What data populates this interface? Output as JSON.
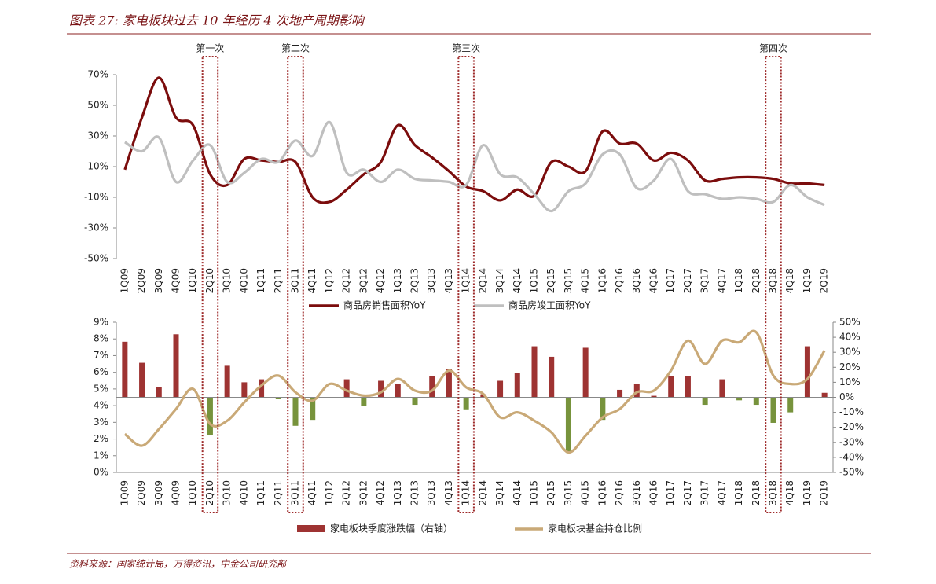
{
  "title": "图表 27:  家电板块过去 10 年经历 4 次地产周期影响",
  "source": "资料来源：国家统计局，万得资讯，中金公司研究部",
  "chart_data": [
    {
      "type": "line",
      "categories": [
        "1Q09",
        "2Q09",
        "3Q09",
        "4Q09",
        "1Q10",
        "2Q10",
        "3Q10",
        "4Q10",
        "1Q11",
        "2Q11",
        "3Q11",
        "4Q11",
        "1Q12",
        "2Q12",
        "3Q12",
        "4Q12",
        "1Q13",
        "2Q13",
        "3Q13",
        "4Q13",
        "1Q14",
        "2Q14",
        "3Q14",
        "4Q14",
        "1Q15",
        "2Q15",
        "3Q15",
        "4Q15",
        "1Q16",
        "2Q16",
        "3Q16",
        "4Q16",
        "1Q17",
        "2Q17",
        "3Q17",
        "4Q17",
        "1Q18",
        "2Q18",
        "3Q18",
        "4Q18",
        "1Q19",
        "2Q19"
      ],
      "ylim": [
        -50,
        70
      ],
      "yticks": [
        {
          "value": -50,
          "label": "-50%"
        },
        {
          "value": -30,
          "label": "-30%"
        },
        {
          "value": -10,
          "label": "-10%"
        },
        {
          "value": 10,
          "label": "10%"
        },
        {
          "value": 30,
          "label": "30%"
        },
        {
          "value": 50,
          "label": "50%"
        },
        {
          "value": 70,
          "label": "70%"
        }
      ],
      "series": [
        {
          "name": "商品房销售面积YoY",
          "color": "#7b0c0c",
          "values": [
            8,
            42,
            68,
            42,
            37,
            5,
            -2,
            15,
            14,
            13,
            13,
            -10,
            -13,
            -5,
            5,
            13,
            37,
            24,
            16,
            7,
            -3,
            -6,
            -12,
            -5,
            -9,
            13,
            10,
            7,
            33,
            25,
            25,
            14,
            19,
            14,
            1,
            2,
            3,
            3,
            2,
            -1,
            -1,
            -2
          ]
        },
        {
          "name": "商品房竣工面积YoY",
          "color": "#bfbfbf",
          "values": [
            26,
            20,
            29,
            0,
            14,
            24,
            0,
            6,
            15,
            13,
            27,
            17,
            39,
            6,
            8,
            0,
            8,
            2,
            1,
            0,
            -2,
            24,
            5,
            3,
            -8,
            -19,
            -6,
            -1,
            18,
            18,
            -4,
            1,
            15,
            -6,
            -8,
            -11,
            -10,
            -11,
            -13,
            -2,
            -10,
            -15
          ]
        }
      ],
      "annotations": [
        {
          "text": "第一次",
          "category": "2Q10"
        },
        {
          "text": "第二次",
          "category": "3Q11"
        },
        {
          "text": "第三次",
          "category": "1Q14"
        },
        {
          "text": "第四次",
          "category": "3Q18"
        }
      ]
    },
    {
      "type": "bar_line",
      "categories": [
        "1Q09",
        "2Q09",
        "3Q09",
        "4Q09",
        "1Q10",
        "2Q10",
        "3Q10",
        "4Q10",
        "1Q11",
        "2Q11",
        "3Q11",
        "4Q11",
        "1Q12",
        "2Q12",
        "3Q12",
        "4Q12",
        "1Q13",
        "2Q13",
        "3Q13",
        "4Q13",
        "1Q14",
        "2Q14",
        "3Q14",
        "4Q14",
        "1Q15",
        "2Q15",
        "3Q15",
        "4Q15",
        "1Q16",
        "2Q16",
        "3Q16",
        "4Q16",
        "1Q17",
        "2Q17",
        "3Q17",
        "4Q17",
        "1Q18",
        "2Q18",
        "3Q18",
        "4Q18",
        "1Q19",
        "2Q19"
      ],
      "ylim": [
        0,
        9
      ],
      "yticks": [
        {
          "value": 0,
          "label": "0%"
        },
        {
          "value": 1,
          "label": "1%"
        },
        {
          "value": 2,
          "label": "2%"
        },
        {
          "value": 3,
          "label": "3%"
        },
        {
          "value": 4,
          "label": "4%"
        },
        {
          "value": 5,
          "label": "5%"
        },
        {
          "value": 6,
          "label": "6%"
        },
        {
          "value": 7,
          "label": "7%"
        },
        {
          "value": 8,
          "label": "8%"
        },
        {
          "value": 9,
          "label": "9%"
        }
      ],
      "y2lim": [
        -50,
        50
      ],
      "y2ticks": [
        {
          "value": -50,
          "label": "-50%"
        },
        {
          "value": -40,
          "label": "-40%"
        },
        {
          "value": -30,
          "label": "-30%"
        },
        {
          "value": -20,
          "label": "-20%"
        },
        {
          "value": -10,
          "label": "-10%"
        },
        {
          "value": 0,
          "label": "0%"
        },
        {
          "value": 10,
          "label": "10%"
        },
        {
          "value": 20,
          "label": "20%"
        },
        {
          "value": 30,
          "label": "30%"
        },
        {
          "value": 40,
          "label": "40%"
        },
        {
          "value": 50,
          "label": "50%"
        }
      ],
      "series": [
        {
          "name": "家电板块季度涨跌幅（右轴）",
          "type": "bar",
          "axis": "y2",
          "color": "#9e3332",
          "negative_color": "#77933c",
          "values": [
            37,
            23,
            7,
            42,
            0,
            -25,
            21,
            10,
            12,
            -1,
            -19,
            -15,
            0,
            12,
            -6,
            11,
            9,
            -5,
            14,
            19,
            -8,
            2,
            11,
            16,
            34,
            27,
            -37,
            33,
            -15,
            5,
            9,
            1,
            14,
            14,
            -5,
            12,
            -2,
            -5,
            -17,
            -10,
            34,
            3
          ]
        },
        {
          "name": "家电板块基金持仓比例",
          "type": "line",
          "color": "#c9a977",
          "values": [
            2.3,
            1.6,
            2.6,
            3.8,
            5.0,
            2.9,
            3.1,
            4.2,
            5.2,
            5.8,
            4.8,
            4.3,
            5.3,
            4.9,
            4.6,
            4.8,
            5.6,
            4.9,
            4.9,
            6.1,
            5.1,
            4.7,
            3.3,
            3.6,
            3.1,
            2.4,
            1.2,
            2.2,
            3.3,
            3.8,
            4.8,
            4.9,
            6.1,
            7.9,
            6.5,
            7.9,
            7.8,
            8.4,
            5.8,
            5.3,
            5.6,
            7.3
          ]
        }
      ]
    }
  ]
}
